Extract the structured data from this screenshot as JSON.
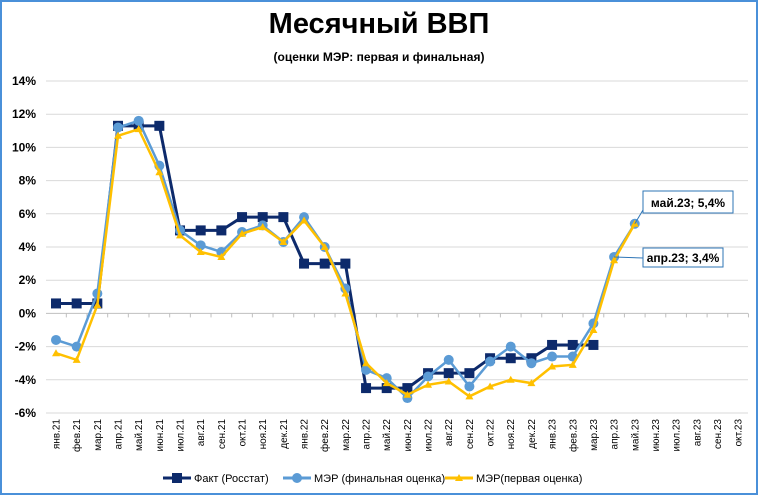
{
  "chart_data": {
    "type": "line",
    "title": "Месячный ВВП",
    "subtitle": "(оценки МЭР: первая и финальная)",
    "xlabel": "",
    "ylabel": "",
    "ylim": [
      -6,
      14
    ],
    "yticks": [
      14,
      12,
      10,
      8,
      6,
      4,
      2,
      0,
      -2,
      -4,
      -6
    ],
    "ytick_labels": [
      "14%",
      "12%",
      "10%",
      "8%",
      "6%",
      "4%",
      "2%",
      "0%",
      "-2%",
      "-4%",
      "-6%"
    ],
    "grid": true,
    "legend_position": "bottom",
    "categories": [
      "янв.21",
      "фев.21",
      "мар.21",
      "апр.21",
      "май.21",
      "июн.21",
      "июл.21",
      "авг.21",
      "сен.21",
      "окт.21",
      "ноя.21",
      "дек.21",
      "янв.22",
      "фев.22",
      "мар.22",
      "апр.22",
      "май.22",
      "июн.22",
      "июл.22",
      "авг.22",
      "сен.22",
      "окт.22",
      "ноя.22",
      "дек.22",
      "янв.23",
      "фев.23",
      "мар.23",
      "апр.23",
      "май.23",
      "июн.23",
      "июл.23",
      "авг.23",
      "сен.23",
      "окт.23"
    ],
    "series": [
      {
        "name": "Факт (Росстат)",
        "color": "#0d2a6b",
        "marker": "square",
        "values": [
          0.6,
          0.6,
          0.6,
          11.3,
          11.3,
          11.3,
          5.0,
          5.0,
          5.0,
          5.8,
          5.8,
          5.8,
          3.0,
          3.0,
          3.0,
          -4.5,
          -4.5,
          -4.5,
          -3.6,
          -3.6,
          -3.6,
          -2.7,
          -2.7,
          -2.7,
          -1.9,
          -1.9,
          -1.9,
          null,
          null,
          null,
          null,
          null,
          null,
          null
        ]
      },
      {
        "name": "МЭР (финальная оценка)",
        "color": "#5b9bd5",
        "marker": "circle",
        "values": [
          -1.6,
          -2.0,
          1.2,
          11.2,
          11.6,
          8.9,
          5.0,
          4.1,
          3.7,
          4.9,
          5.3,
          4.3,
          5.8,
          4.0,
          1.5,
          -3.4,
          -3.9,
          -5.1,
          -3.8,
          -2.8,
          -4.4,
          -2.9,
          -2.0,
          -3.0,
          -2.6,
          -2.6,
          -0.6,
          3.4,
          5.4,
          null,
          null,
          null,
          null,
          null
        ]
      },
      {
        "name": "МЭР(первая оценка)",
        "color": "#ffc000",
        "marker": "triangle",
        "values": [
          -2.4,
          -2.8,
          0.5,
          10.7,
          11.1,
          8.5,
          4.7,
          3.7,
          3.4,
          4.8,
          5.2,
          4.3,
          5.6,
          4.0,
          1.2,
          -3.0,
          -4.2,
          -4.9,
          -4.3,
          -4.1,
          -5.0,
          -4.4,
          -4.0,
          -4.2,
          -3.2,
          -3.1,
          -1.0,
          3.2,
          5.4,
          null,
          null,
          null,
          null,
          null
        ]
      }
    ],
    "annotations": [
      {
        "text": "май.23; 5,4%",
        "category": "май.23",
        "value": 5.4
      },
      {
        "text": "апр.23; 3,4%",
        "category": "апр.23",
        "value": 3.4
      }
    ]
  }
}
